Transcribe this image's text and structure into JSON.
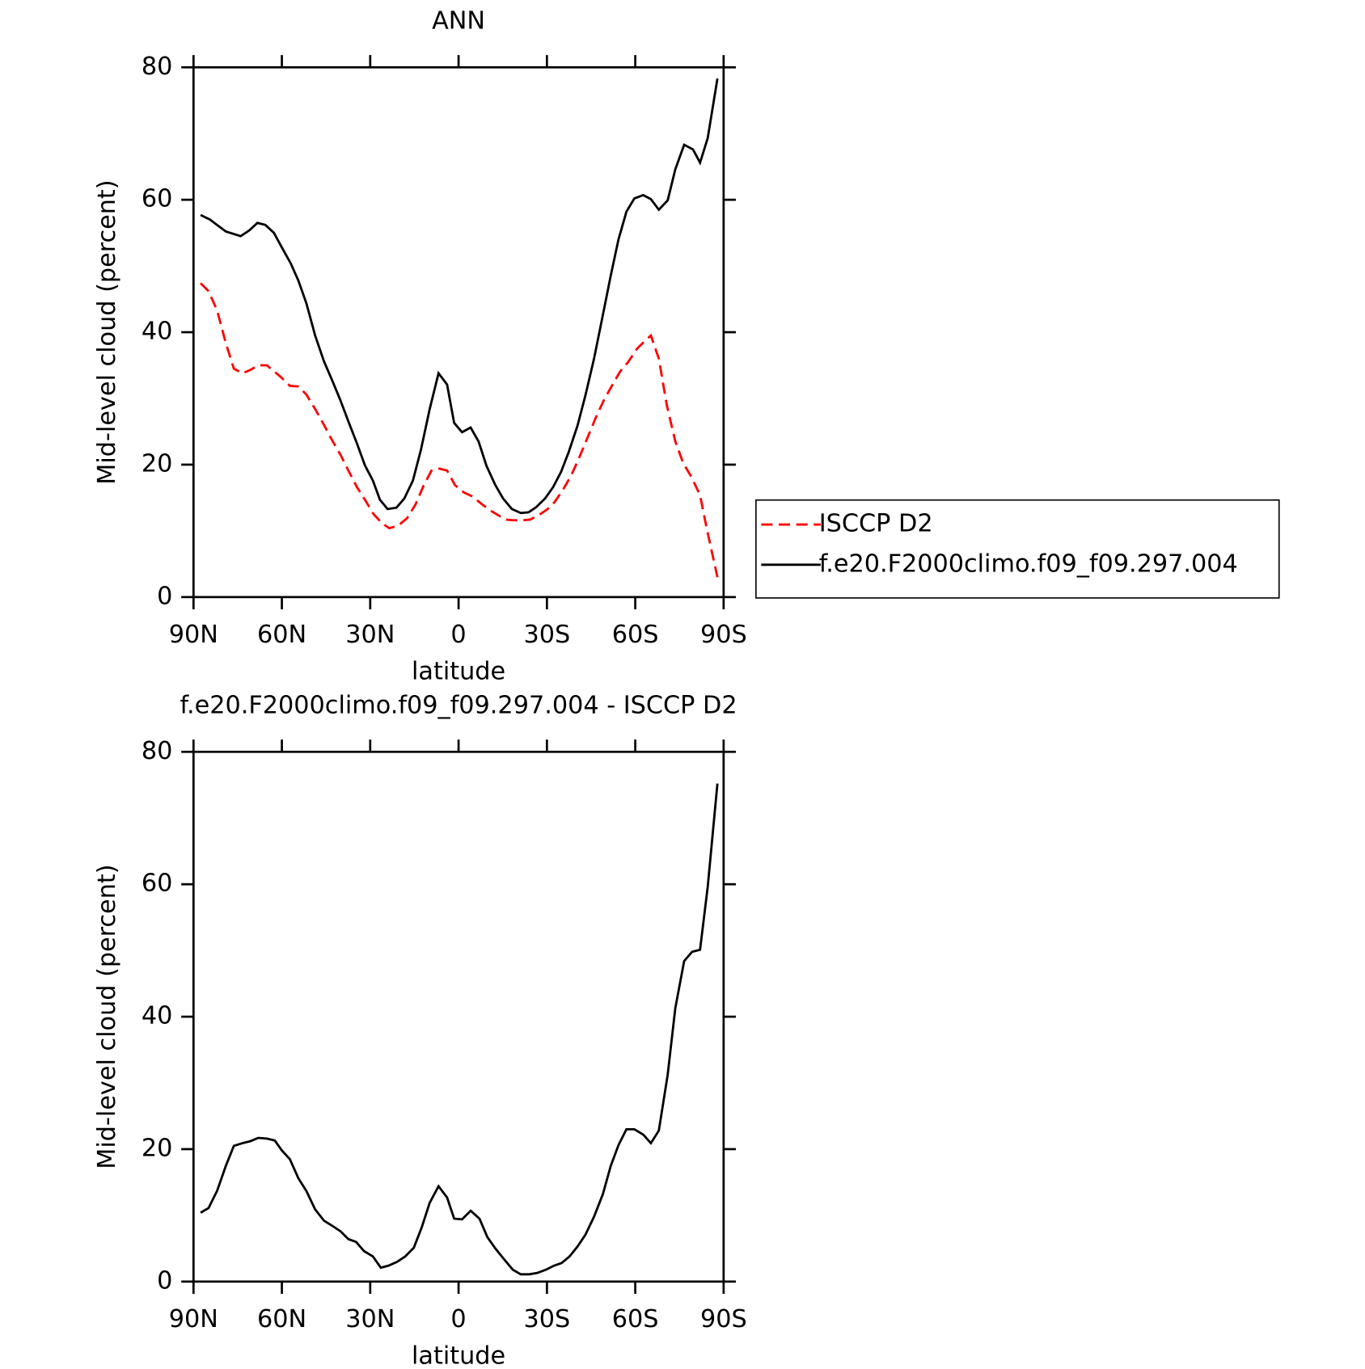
{
  "chart_data": [
    {
      "type": "line",
      "title": "ANN",
      "xlabel": "latitude",
      "ylabel": "Mid-level cloud (percent)",
      "xlim": [
        90,
        -90
      ],
      "xticks": [
        {
          "value": 90,
          "label": "90N"
        },
        {
          "value": 60,
          "label": "60N"
        },
        {
          "value": 30,
          "label": "30N"
        },
        0,
        {
          "value": -30,
          "label": "30S"
        },
        {
          "value": -60,
          "label": "60S"
        },
        {
          "value": -90,
          "label": "90S"
        }
      ],
      "ylim": [
        0,
        80
      ],
      "yticks": [
        0,
        20,
        40,
        60,
        80
      ],
      "legend": "right",
      "series": [
        {
          "name": "ISCCP D2",
          "color": "#ff0000",
          "style": "dashed",
          "x": [
            87.6,
            84.9,
            82.0,
            79.0,
            76.3,
            73.4,
            70.7,
            68.0,
            65.1,
            62.7,
            60.0,
            57.3,
            54.4,
            51.7,
            48.7,
            45.7,
            43.1,
            40.1,
            37.4,
            34.5,
            31.8,
            28.8,
            26.1,
            23.5,
            20.5,
            17.5,
            14.6,
            11.9,
            9.2,
            6.5,
            3.9,
            1.2,
            -1.8,
            -4.7,
            -7.7,
            -10.7,
            -13.7,
            -16.0,
            -18.7,
            -21.7,
            -24.3,
            -27.3,
            -30.0,
            -32.7,
            -35.3,
            -38.3,
            -41.0,
            -43.9,
            -46.6,
            -49.3,
            -52.3,
            -54.9,
            -57.6,
            -60.6,
            -63.3,
            -65.3,
            -68.0,
            -70.7,
            -73.6,
            -76.3,
            -79.0,
            -82.0,
            -84.3,
            -87.9
          ],
          "values": [
            47.4,
            46.2,
            43.3,
            38.3,
            34.5,
            33.8,
            34.3,
            35.0,
            35.0,
            34.1,
            33.1,
            31.9,
            31.8,
            30.6,
            28.4,
            26.0,
            23.8,
            21.5,
            19.1,
            16.6,
            14.7,
            12.5,
            11.2,
            10.4,
            10.8,
            11.9,
            14.0,
            16.8,
            19.1,
            19.4,
            19.1,
            16.9,
            15.8,
            15.2,
            14.1,
            13.1,
            12.3,
            11.7,
            11.6,
            11.6,
            11.7,
            12.4,
            13.2,
            14.4,
            16.1,
            18.4,
            21.1,
            24.2,
            27.1,
            29.7,
            32.1,
            34.1,
            35.5,
            37.5,
            38.7,
            39.5,
            36.0,
            29.0,
            23.5,
            20.2,
            18.2,
            15.4,
            10.3,
            3.0
          ]
        },
        {
          "name": "f.e20.F2000climo.f09_f09.297.004",
          "color": "#000000",
          "style": "solid",
          "x": [
            87.6,
            84.4,
            82.0,
            79.0,
            74.0,
            71.0,
            68.3,
            65.6,
            62.7,
            60.0,
            57.0,
            54.4,
            51.7,
            48.7,
            45.7,
            42.8,
            40.1,
            37.4,
            34.5,
            31.8,
            29.1,
            26.7,
            24.1,
            21.1,
            18.4,
            15.5,
            12.8,
            9.8,
            6.8,
            3.9,
            1.5,
            -1.2,
            -4.1,
            -6.8,
            -9.5,
            -12.5,
            -15.1,
            -18.1,
            -21.1,
            -23.8,
            -26.4,
            -29.4,
            -32.1,
            -34.8,
            -37.4,
            -40.4,
            -43.1,
            -46.0,
            -49.0,
            -51.7,
            -54.3,
            -57.0,
            -59.7,
            -62.7,
            -65.3,
            -68.0,
            -71.0,
            -73.6,
            -76.6,
            -79.6,
            -82.0,
            -84.6,
            -87.9
          ],
          "values": [
            57.7,
            57.0,
            56.2,
            55.2,
            54.5,
            55.4,
            56.5,
            56.2,
            55.0,
            52.8,
            50.4,
            47.8,
            44.4,
            39.5,
            35.6,
            32.6,
            29.7,
            26.5,
            23.2,
            19.9,
            17.6,
            14.7,
            13.3,
            13.5,
            14.9,
            17.6,
            22.2,
            28.4,
            33.8,
            32.1,
            26.3,
            24.9,
            25.6,
            23.5,
            19.8,
            16.9,
            14.9,
            13.3,
            12.7,
            12.8,
            13.6,
            14.9,
            16.6,
            18.9,
            21.9,
            25.9,
            30.5,
            36.0,
            42.6,
            48.6,
            54.0,
            58.2,
            60.2,
            60.7,
            60.1,
            58.5,
            59.9,
            64.6,
            68.3,
            67.6,
            65.6,
            69.3,
            78.3
          ]
        }
      ]
    },
    {
      "type": "line",
      "title": "f.e20.F2000climo.f09_f09.297.004 - ISCCP D2",
      "xlabel": "latitude",
      "ylabel": "Mid-level cloud (percent)",
      "xlim": [
        90,
        -90
      ],
      "xticks": [
        {
          "value": 90,
          "label": "90N"
        },
        {
          "value": 60,
          "label": "60N"
        },
        {
          "value": 30,
          "label": "30N"
        },
        0,
        {
          "value": -30,
          "label": "30S"
        },
        {
          "value": -60,
          "label": "60S"
        },
        {
          "value": -90,
          "label": "90S"
        }
      ],
      "ylim": [
        0,
        80
      ],
      "yticks": [
        0,
        20,
        40,
        60,
        80
      ],
      "series": [
        {
          "color": "#000000",
          "style": "solid",
          "x": [
            87.6,
            84.9,
            82.0,
            79.0,
            76.3,
            73.4,
            70.7,
            68.0,
            65.1,
            62.4,
            60.0,
            57.3,
            54.4,
            51.7,
            48.7,
            45.7,
            42.8,
            40.1,
            37.4,
            34.8,
            32.1,
            29.1,
            26.4,
            23.8,
            20.8,
            18.1,
            15.2,
            12.5,
            9.8,
            6.8,
            3.9,
            1.5,
            -1.2,
            -4.1,
            -7.1,
            -9.8,
            -12.5,
            -15.4,
            -18.4,
            -21.1,
            -24.0,
            -26.7,
            -29.7,
            -32.4,
            -35.0,
            -37.7,
            -40.4,
            -43.1,
            -46.0,
            -49.0,
            -51.7,
            -54.3,
            -57.0,
            -59.7,
            -62.7,
            -65.3,
            -68.0,
            -71.0,
            -73.6,
            -76.6,
            -79.3,
            -82.0,
            -84.6,
            -87.9
          ],
          "values": [
            10.4,
            11.1,
            13.7,
            17.5,
            20.5,
            20.9,
            21.2,
            21.7,
            21.6,
            21.3,
            19.8,
            18.5,
            15.6,
            13.7,
            10.9,
            9.2,
            8.4,
            7.6,
            6.4,
            6.0,
            4.6,
            3.8,
            2.1,
            2.4,
            3.0,
            3.8,
            5.1,
            8.2,
            11.9,
            14.4,
            12.7,
            9.5,
            9.4,
            10.7,
            9.5,
            6.7,
            5.0,
            3.4,
            1.8,
            1.1,
            1.1,
            1.3,
            1.8,
            2.4,
            2.8,
            3.8,
            5.3,
            7.1,
            9.8,
            13.2,
            17.5,
            20.6,
            23.0,
            23.0,
            22.2,
            20.9,
            22.8,
            31.2,
            41.3,
            48.4,
            49.8,
            50.1,
            59.6,
            75.2
          ]
        }
      ]
    }
  ]
}
